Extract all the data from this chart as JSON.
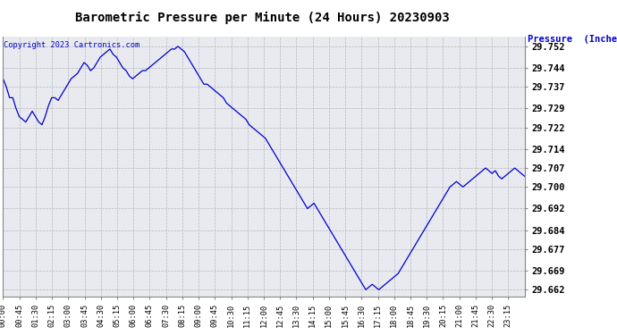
{
  "title": "Barometric Pressure per Minute (24 Hours) 20230903",
  "copyright_text": "Copyright 2023 Cartronics.com",
  "ylabel": "Pressure  (Inches/Hg)",
  "background_color": "#ffffff",
  "plot_bg_color": "#e8eaf0",
  "line_color": "#0000cc",
  "title_color": "#000000",
  "ylabel_color": "#0000cc",
  "copyright_color": "#0000cc",
  "ylim": [
    29.6595,
    29.7555
  ],
  "yticks": [
    29.752,
    29.744,
    29.737,
    29.729,
    29.722,
    29.714,
    29.707,
    29.7,
    29.692,
    29.684,
    29.677,
    29.669,
    29.662
  ],
  "xtick_labels": [
    "00:00",
    "00:45",
    "01:30",
    "02:15",
    "03:00",
    "03:45",
    "04:30",
    "05:15",
    "06:00",
    "06:45",
    "07:30",
    "08:15",
    "09:00",
    "09:45",
    "10:30",
    "11:15",
    "12:00",
    "12:45",
    "13:30",
    "14:15",
    "15:00",
    "15:45",
    "16:30",
    "17:15",
    "18:00",
    "18:45",
    "19:30",
    "20:15",
    "21:00",
    "21:45",
    "22:30",
    "23:15"
  ],
  "pressure_data": [
    29.74,
    29.737,
    29.733,
    29.733,
    29.729,
    29.726,
    29.725,
    29.724,
    29.726,
    29.728,
    29.726,
    29.724,
    29.723,
    29.726,
    29.73,
    29.733,
    29.733,
    29.732,
    29.734,
    29.736,
    29.738,
    29.74,
    29.741,
    29.742,
    29.744,
    29.746,
    29.745,
    29.743,
    29.744,
    29.746,
    29.748,
    29.749,
    29.75,
    29.751,
    29.749,
    29.748,
    29.746,
    29.744,
    29.743,
    29.741,
    29.74,
    29.741,
    29.742,
    29.743,
    29.743,
    29.744,
    29.745,
    29.746,
    29.747,
    29.748,
    29.749,
    29.75,
    29.751,
    29.751,
    29.752,
    29.751,
    29.75,
    29.748,
    29.746,
    29.744,
    29.742,
    29.74,
    29.738,
    29.738,
    29.737,
    29.736,
    29.735,
    29.734,
    29.733,
    29.731,
    29.73,
    29.729,
    29.728,
    29.727,
    29.726,
    29.725,
    29.723,
    29.722,
    29.721,
    29.72,
    29.719,
    29.718,
    29.716,
    29.714,
    29.712,
    29.71,
    29.708,
    29.706,
    29.704,
    29.702,
    29.7,
    29.698,
    29.696,
    29.694,
    29.692,
    29.693,
    29.694,
    29.692,
    29.69,
    29.688,
    29.686,
    29.684,
    29.682,
    29.68,
    29.678,
    29.676,
    29.674,
    29.672,
    29.67,
    29.668,
    29.666,
    29.664,
    29.662,
    29.663,
    29.664,
    29.663,
    29.662,
    29.663,
    29.664,
    29.665,
    29.666,
    29.667,
    29.668,
    29.67,
    29.672,
    29.674,
    29.676,
    29.678,
    29.68,
    29.682,
    29.684,
    29.686,
    29.688,
    29.69,
    29.692,
    29.694,
    29.696,
    29.698,
    29.7,
    29.701,
    29.702,
    29.701,
    29.7,
    29.701,
    29.702,
    29.703,
    29.704,
    29.705,
    29.706,
    29.707,
    29.706,
    29.705,
    29.706,
    29.704,
    29.703,
    29.704,
    29.705,
    29.706,
    29.707,
    29.706,
    29.705,
    29.704
  ]
}
